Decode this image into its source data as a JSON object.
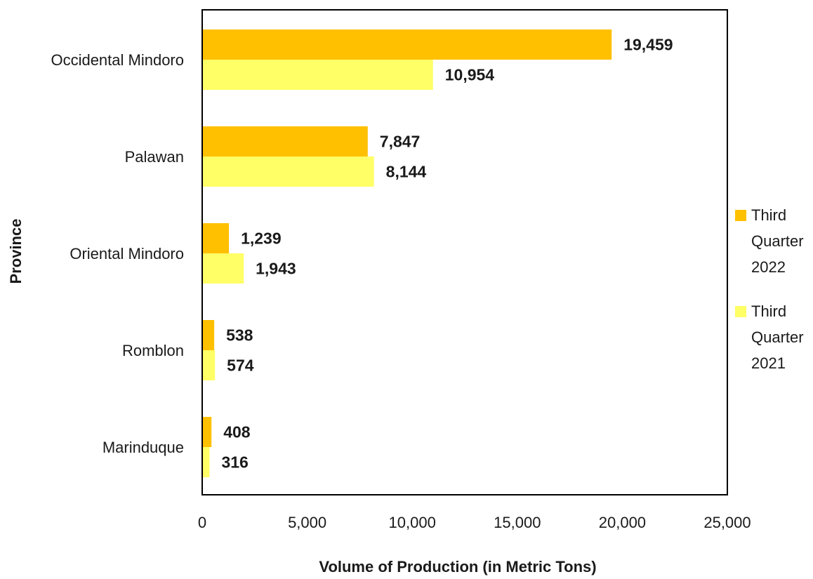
{
  "chart_data": {
    "type": "bar",
    "orientation": "horizontal",
    "title": "",
    "xlabel": "Volume of Production (in Metric Tons)",
    "ylabel": "Province",
    "categories": [
      "Occidental Mindoro",
      "Palawan",
      "Oriental Mindoro",
      "Romblon",
      "Marinduque"
    ],
    "series": [
      {
        "name": "Third Quarter 2022",
        "color": "#ffc000",
        "values": [
          19459,
          7847,
          1239,
          538,
          408
        ],
        "labels": [
          "19,459",
          "7,847",
          "1,239",
          "538",
          "408"
        ]
      },
      {
        "name": "Third Quarter 2021",
        "color": "#ffff66",
        "values": [
          10954,
          8144,
          1943,
          574,
          316
        ],
        "labels": [
          "10,954",
          "8,144",
          "1,943",
          "574",
          "316"
        ]
      }
    ],
    "xlim": [
      0,
      25000
    ],
    "ticks": [
      0,
      5000,
      10000,
      15000,
      20000,
      25000
    ],
    "tick_labels": [
      "0",
      "5,000",
      "10,000",
      "15,000",
      "20,000",
      "25,000"
    ],
    "legend": {
      "position": "right",
      "entries": [
        {
          "lines": [
            "Third",
            "Quarter",
            "2022"
          ]
        },
        {
          "lines": [
            "Third",
            "Quarter",
            "2021"
          ]
        }
      ]
    },
    "grid": false
  }
}
